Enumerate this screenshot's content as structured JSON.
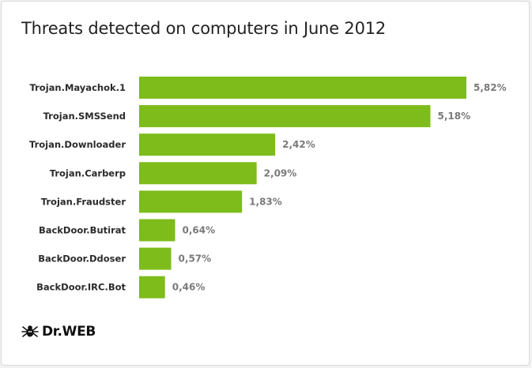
{
  "colors": {
    "bar": "#7dbc1a",
    "value_label": "#7a7a7a",
    "category_label": "#2b2b2b"
  },
  "logo": {
    "text": "Dr.WEB",
    "icon": "spider-icon"
  },
  "chart_data": {
    "type": "bar",
    "orientation": "horizontal",
    "title": "Threats detected on computers in June 2012",
    "categories": [
      "Trojan.Mayachok.1",
      "Trojan.SMSSend",
      "Trojan.Downloader",
      "Trojan.Carberp",
      "Trojan.Fraudster",
      "BackDoor.Butirat",
      "BackDoor.Ddoser",
      "BackDoor.IRC.Bot"
    ],
    "values": [
      5.82,
      5.18,
      2.42,
      2.09,
      1.83,
      0.64,
      0.57,
      0.46
    ],
    "value_labels": [
      "5,82%",
      "5,18%",
      "2,42%",
      "2,09%",
      "1,83%",
      "0,64%",
      "0,57%",
      "0,46%"
    ],
    "xlim": [
      0,
      5.82
    ],
    "grid": false,
    "legend": "none"
  }
}
